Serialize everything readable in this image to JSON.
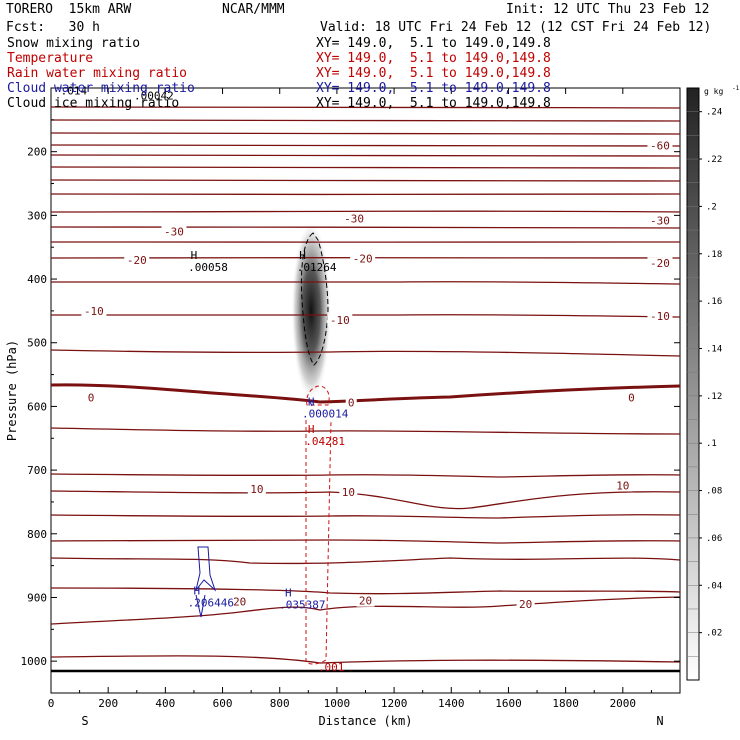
{
  "header": {
    "model": "TORERO  15km ARW",
    "center": "NCAR/MMM",
    "init": "Init: 12 UTC Thu 23 Feb 12",
    "fcst": "Fcst:   30 h",
    "valid": "Valid: 18 UTC Fri 24 Feb 12 (12 CST Fri 24 Feb 12)"
  },
  "fields": [
    {
      "label": "Snow mixing ratio",
      "xy": "XY= 149.0,  5.1 to 149.0,149.8",
      "color": "#000000"
    },
    {
      "label": "Temperature",
      "xy": "XY= 149.0,  5.1 to 149.0,149.8",
      "color": "#c00000"
    },
    {
      "label": "Rain water mixing ratio",
      "xy": "XY= 149.0,  5.1 to 149.0,149.8",
      "color": "#c00000"
    },
    {
      "label": "Cloud water mixing ratio",
      "xy": "XY= 149.0,  5.1 to 149.0,149.8",
      "color": "#1a1aa0"
    },
    {
      "label": "Cloud ice mixing ratio",
      "xy": "XY= 149.0,  5.1 to 149.0,149.8",
      "color": "#000000"
    }
  ],
  "chart_data": {
    "type": "contour",
    "xlabel": "Distance (km)",
    "ylabel": "Pressure (hPa)",
    "xlim": [
      0,
      2200
    ],
    "ylim": [
      1050,
      100
    ],
    "xticks": [
      "0",
      "200",
      "400",
      "600",
      "800",
      "1000",
      "1200",
      "1400",
      "1600",
      "1800",
      "2000"
    ],
    "yticks": [
      "200",
      "300",
      "400",
      "500",
      "600",
      "700",
      "800",
      "900",
      "1000"
    ],
    "xend_labels": {
      "left": "S",
      "right": "N"
    },
    "colorbar": {
      "unit": "g kg",
      "unit_exp": "-1",
      "ticks": [
        ".24",
        ".22",
        ".2",
        ".18",
        ".16",
        ".14",
        ".12",
        ".1",
        ".08",
        ".06",
        ".04",
        ".02"
      ],
      "range": [
        0,
        0.25
      ]
    },
    "temperature_labels": [
      {
        "text": "-60",
        "x": 2130,
        "p": 190
      },
      {
        "text": "-30",
        "x": 430,
        "p": 325
      },
      {
        "text": "-30",
        "x": 1060,
        "p": 305
      },
      {
        "text": "-30",
        "x": 2130,
        "p": 308
      },
      {
        "text": "-20",
        "x": 300,
        "p": 370
      },
      {
        "text": "-20",
        "x": 1090,
        "p": 368
      },
      {
        "text": "-20",
        "x": 2130,
        "p": 375
      },
      {
        "text": "-10",
        "x": 150,
        "p": 450
      },
      {
        "text": "-10",
        "x": 1010,
        "p": 464
      },
      {
        "text": "-10",
        "x": 2130,
        "p": 458
      },
      {
        "text": "0",
        "x": 140,
        "p": 586
      },
      {
        "text": "0",
        "x": 1050,
        "p": 594
      },
      {
        "text": "0",
        "x": 2030,
        "p": 586
      },
      {
        "text": "10",
        "x": 720,
        "p": 730
      },
      {
        "text": "10",
        "x": 1040,
        "p": 734
      },
      {
        "text": "10",
        "x": 2000,
        "p": 724
      },
      {
        "text": "20",
        "x": 660,
        "p": 906
      },
      {
        "text": "20",
        "x": 1100,
        "p": 905
      },
      {
        "text": "20",
        "x": 1660,
        "p": 910
      }
    ],
    "freezing_level_p": 588,
    "extrema": [
      {
        "mark": "H",
        "value": ".00058",
        "x": 500,
        "p": 375,
        "color": "#000000"
      },
      {
        "mark": "H",
        "value": ".01264",
        "x": 880,
        "p": 375,
        "color": "#000000"
      },
      {
        "mark": "H",
        "value": ".000014",
        "x": 910,
        "p": 605,
        "color": "#1a1aa0"
      },
      {
        "mark": "H",
        "value": ".04281",
        "x": 910,
        "p": 648,
        "color": "#c00000"
      },
      {
        "mark": "H",
        "value": ".035387",
        "x": 830,
        "p": 905,
        "color": "#1a1aa0"
      },
      {
        "mark": "H",
        "value": ".206446",
        "x": 510,
        "p": 902,
        "color": "#1a1aa0"
      }
    ],
    "minima": [
      {
        "value": ".001",
        "x": 980,
        "p": 1003,
        "color": "#c00000"
      }
    ],
    "overlap_labels": [
      {
        "text": ".014",
        "x": 80,
        "p": 110
      },
      {
        "text": ".00042",
        "x": 360,
        "p": 118
      }
    ],
    "snow_core": {
      "x": 910,
      "p_top": 340,
      "p_bottom": 560,
      "max": 0.24
    }
  }
}
